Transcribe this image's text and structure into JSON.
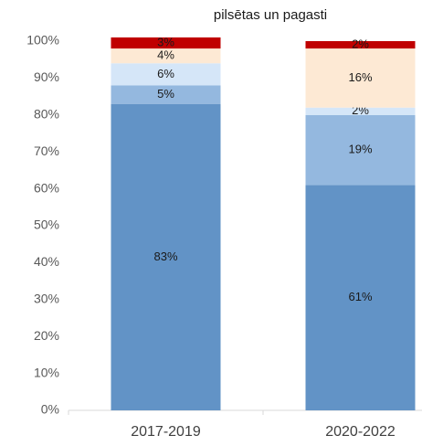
{
  "chart_data": {
    "type": "stacked_bar",
    "title": "pilsētas un pagasti",
    "categories": [
      "2017-2019",
      "2020-2022"
    ],
    "series": [
      {
        "color": "#6293c6",
        "values": [
          83,
          61
        ],
        "value_labels": [
          "83%",
          "61%"
        ]
      },
      {
        "color": "#94b8df",
        "values": [
          5,
          19
        ],
        "value_labels": [
          "5%",
          "19%"
        ]
      },
      {
        "color": "#d5e6f8",
        "values": [
          6,
          2
        ],
        "value_labels": [
          "6%",
          "2%"
        ]
      },
      {
        "color": "#fde9d4",
        "values": [
          4,
          16
        ],
        "value_labels": [
          "4%",
          "16%"
        ]
      },
      {
        "color": "#c00000",
        "values": [
          3,
          2
        ],
        "value_labels": [
          "3%",
          "2%"
        ]
      }
    ],
    "ylim": [
      0,
      100
    ],
    "yticks": [
      {
        "value": 0,
        "label": "0%"
      },
      {
        "value": 10,
        "label": "10%"
      },
      {
        "value": 20,
        "label": "20%"
      },
      {
        "value": 30,
        "label": "30%"
      },
      {
        "value": 40,
        "label": "40%"
      },
      {
        "value": 50,
        "label": "50%"
      },
      {
        "value": 60,
        "label": "60%"
      },
      {
        "value": 70,
        "label": "70%"
      },
      {
        "value": 80,
        "label": "80%"
      },
      {
        "value": 90,
        "label": "90%"
      },
      {
        "value": 100,
        "label": "100%"
      }
    ],
    "grid": false
  }
}
